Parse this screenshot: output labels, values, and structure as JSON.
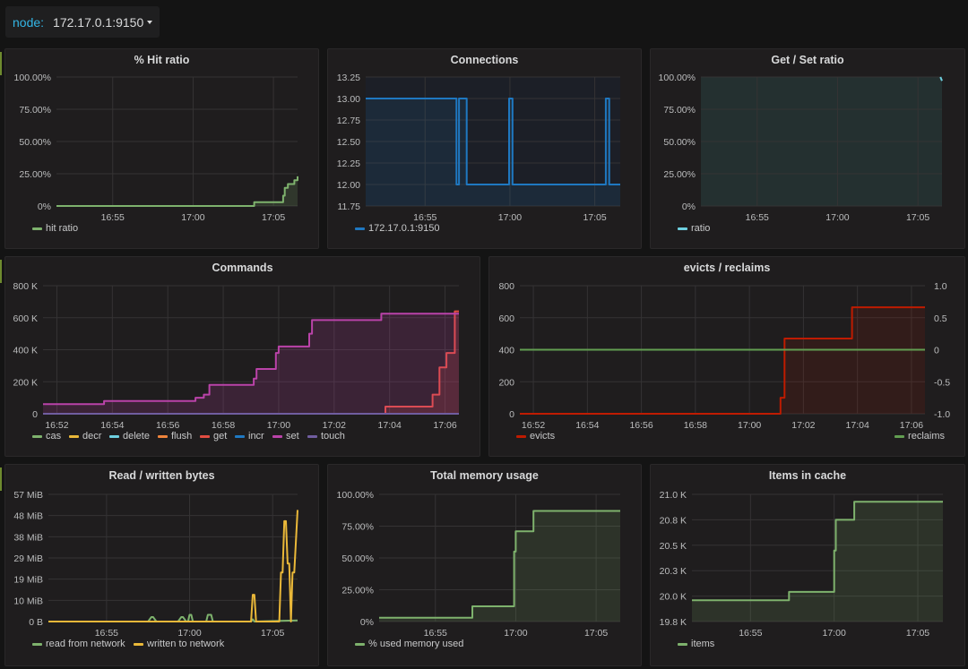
{
  "variables": {
    "label": "node:",
    "value": "172.17.0.1:9150"
  },
  "chart_data": [
    {
      "id": "hit",
      "type": "area",
      "title": "% Hit ratio",
      "x_ticks": [
        "16:55",
        "17:00",
        "17:05"
      ],
      "x_tick_minutes": [
        55,
        60,
        65
      ],
      "xlim_minutes": [
        51.5,
        66.5
      ],
      "y_ticks": [
        "0%",
        "25.00%",
        "50.00%",
        "75.00%",
        "100.00%"
      ],
      "ylim": [
        0,
        100
      ],
      "series": [
        {
          "name": "hit ratio",
          "color": "#7eb26d",
          "step": true,
          "x": [
            51.5,
            63.8,
            63.8,
            65.5,
            65.6,
            65.7,
            65.9,
            66.1,
            66.3,
            66.5
          ],
          "y": [
            0,
            0,
            3,
            3,
            8,
            14,
            17,
            17,
            20,
            23
          ]
        }
      ],
      "legend": [
        "hit ratio"
      ]
    },
    {
      "id": "conn",
      "type": "area",
      "title": "Connections",
      "x_ticks": [
        "16:55",
        "17:00",
        "17:05"
      ],
      "x_tick_minutes": [
        55,
        60,
        65
      ],
      "xlim_minutes": [
        51.5,
        66.5
      ],
      "y_ticks": [
        "11.75",
        "12.00",
        "12.25",
        "12.50",
        "12.75",
        "13.00",
        "13.25"
      ],
      "ylim": [
        11.75,
        13.25
      ],
      "series": [
        {
          "name": "172.17.0.1:9150",
          "color": "#1f78c1",
          "step": true,
          "x": [
            51.5,
            56.8,
            56.85,
            56.95,
            57.0,
            57.4,
            57.45,
            59.9,
            59.95,
            60.1,
            60.15,
            65.6,
            65.65,
            65.8,
            65.85,
            66.5
          ],
          "y": [
            13,
            13,
            12,
            12,
            13,
            13,
            12,
            12,
            13,
            13,
            12,
            12,
            13,
            13,
            12,
            12
          ]
        }
      ],
      "legend": [
        "172.17.0.1:9150"
      ]
    },
    {
      "id": "getset",
      "type": "area",
      "title": "Get / Set ratio",
      "x_ticks": [
        "16:55",
        "17:00",
        "17:05"
      ],
      "x_tick_minutes": [
        55,
        60,
        65
      ],
      "xlim_minutes": [
        51.5,
        66.5
      ],
      "y_ticks": [
        "0%",
        "25.00%",
        "50.00%",
        "75.00%",
        "100.00%"
      ],
      "ylim": [
        0,
        100
      ],
      "series": [
        {
          "name": "ratio",
          "color": "#6ed0e0",
          "step": false,
          "x": [
            66.4,
            66.5
          ],
          "y": [
            100,
            97
          ]
        }
      ],
      "legend": [
        "ratio"
      ]
    },
    {
      "id": "cmd",
      "type": "area",
      "title": "Commands",
      "x_ticks": [
        "16:52",
        "16:54",
        "16:56",
        "16:58",
        "17:00",
        "17:02",
        "17:04",
        "17:06"
      ],
      "x_tick_minutes": [
        52,
        54,
        56,
        58,
        60,
        62,
        64,
        66
      ],
      "xlim_minutes": [
        51.5,
        66.5
      ],
      "y_ticks": [
        "0",
        "200 K",
        "400 K",
        "600 K",
        "800 K"
      ],
      "ylim": [
        0,
        800000
      ],
      "series": [
        {
          "name": "cas",
          "color": "#7eb26d",
          "x": [],
          "y": []
        },
        {
          "name": "decr",
          "color": "#eab839",
          "x": [],
          "y": []
        },
        {
          "name": "delete",
          "color": "#6ed0e0",
          "x": [],
          "y": []
        },
        {
          "name": "flush",
          "color": "#ef843c",
          "x": [],
          "y": []
        },
        {
          "name": "get",
          "color": "#e24d42",
          "step": true,
          "x": [
            51.5,
            63.8,
            63.85,
            65.5,
            65.55,
            65.7,
            65.8,
            65.95,
            66.05,
            66.25,
            66.35,
            66.5
          ],
          "y": [
            0,
            0,
            45000,
            45000,
            120000,
            120000,
            290000,
            290000,
            380000,
            380000,
            640000,
            640000
          ]
        },
        {
          "name": "incr",
          "color": "#1f78c1",
          "x": [],
          "y": []
        },
        {
          "name": "set",
          "color": "#ba43a9",
          "step": true,
          "x": [
            51.5,
            53.7,
            57.0,
            57.3,
            57.5,
            59.1,
            59.2,
            59.9,
            60.0,
            61.1,
            61.2,
            63.7,
            66.5
          ],
          "y": [
            60000,
            80000,
            100000,
            120000,
            180000,
            220000,
            280000,
            380000,
            420000,
            500000,
            585000,
            625000,
            625000
          ]
        },
        {
          "name": "touch",
          "color": "#705da0",
          "step": true,
          "x": [
            51.5,
            66.5
          ],
          "y": [
            0,
            0
          ]
        }
      ],
      "legend": [
        "cas",
        "decr",
        "delete",
        "flush",
        "get",
        "incr",
        "set",
        "touch"
      ]
    },
    {
      "id": "evict",
      "type": "area",
      "title": "evicts / reclaims",
      "x_ticks": [
        "16:52",
        "16:54",
        "16:56",
        "16:58",
        "17:00",
        "17:02",
        "17:04",
        "17:06"
      ],
      "x_tick_minutes": [
        52,
        54,
        56,
        58,
        60,
        62,
        64,
        66
      ],
      "xlim_minutes": [
        51.5,
        66.5
      ],
      "y_ticks": [
        "0",
        "200",
        "400",
        "600",
        "800"
      ],
      "ylim": [
        0,
        800
      ],
      "y2_ticks": [
        "-1.0",
        "-0.5",
        "0",
        "0.5",
        "1.0"
      ],
      "y2lim": [
        -1,
        1
      ],
      "series": [
        {
          "name": "evicts",
          "color": "#bf1b00",
          "step": true,
          "x": [
            51.5,
            61.1,
            61.15,
            61.25,
            61.3,
            63.75,
            63.8,
            66.5
          ],
          "y": [
            0,
            0,
            100,
            100,
            470,
            470,
            665,
            665
          ]
        },
        {
          "name": "reclaims",
          "color": "#629e51",
          "axis": "right",
          "x": [
            51.5,
            66.5
          ],
          "y": [
            0,
            0
          ]
        }
      ],
      "legend": [
        "evicts",
        "reclaims"
      ]
    },
    {
      "id": "bytes",
      "type": "line",
      "title": "Read / written bytes",
      "x_ticks": [
        "16:55",
        "17:00",
        "17:05"
      ],
      "x_tick_minutes": [
        55,
        60,
        65
      ],
      "xlim_minutes": [
        51.5,
        66.5
      ],
      "y_ticks": [
        "0 B",
        "10 MiB",
        "19 MiB",
        "29 MiB",
        "38 MiB",
        "48 MiB",
        "57 MiB"
      ],
      "ylim": [
        0,
        57
      ],
      "series": [
        {
          "name": "read from network",
          "color": "#7eb26d",
          "x": [
            51.5,
            57.5,
            57.7,
            57.8,
            58.0,
            59.3,
            59.5,
            59.6,
            59.8,
            59.9,
            60.0,
            60.1,
            60.2,
            61.0,
            61.1,
            61.3,
            61.4,
            63.7,
            63.8,
            63.9,
            66.5
          ],
          "y": [
            0,
            0,
            2,
            2,
            0,
            0,
            2,
            2,
            0,
            0,
            3,
            3,
            0,
            0,
            3,
            3,
            0,
            0,
            1,
            0,
            0.5
          ]
        },
        {
          "name": "written to network",
          "color": "#eab839",
          "x": [
            51.5,
            63.7,
            63.8,
            63.9,
            64.0,
            65.4,
            65.5,
            65.6,
            65.7,
            65.8,
            65.9,
            66.0,
            66.1,
            66.2,
            66.3,
            66.5
          ],
          "y": [
            0,
            0,
            12,
            12,
            0,
            0,
            22,
            22,
            45,
            45,
            26,
            26,
            0,
            22,
            22,
            50
          ]
        }
      ],
      "legend": [
        "read from network",
        "written to network"
      ]
    },
    {
      "id": "mem",
      "type": "area",
      "title": "Total memory usage",
      "x_ticks": [
        "16:55",
        "17:00",
        "17:05"
      ],
      "x_tick_minutes": [
        55,
        60,
        65
      ],
      "xlim_minutes": [
        51.5,
        66.5
      ],
      "y_ticks": [
        "0%",
        "25.00%",
        "50.00%",
        "75.00%",
        "100.00%"
      ],
      "ylim": [
        0,
        100
      ],
      "series": [
        {
          "name": "% used memory used",
          "color": "#7eb26d",
          "step": true,
          "x": [
            51.5,
            57.3,
            59.9,
            60.0,
            61.1,
            66.5
          ],
          "y": [
            3,
            12,
            55,
            71,
            87,
            87
          ]
        }
      ],
      "legend": [
        "% used memory used"
      ]
    },
    {
      "id": "items",
      "type": "area",
      "title": "Items in cache",
      "x_ticks": [
        "16:55",
        "17:00",
        "17:05"
      ],
      "x_tick_minutes": [
        55,
        60,
        65
      ],
      "xlim_minutes": [
        51.5,
        66.5
      ],
      "y_ticks": [
        "19.8 K",
        "20.0 K",
        "20.3 K",
        "20.5 K",
        "20.8 K",
        "21.0 K"
      ],
      "ylim": [
        19800,
        21000
      ],
      "series": [
        {
          "name": "items",
          "color": "#7eb26d",
          "step": true,
          "x": [
            51.5,
            57.3,
            60.0,
            60.1,
            61.2,
            66.5
          ],
          "y": [
            20000,
            20080,
            20470,
            20760,
            20930,
            20930
          ]
        }
      ],
      "legend": [
        "items"
      ]
    }
  ]
}
